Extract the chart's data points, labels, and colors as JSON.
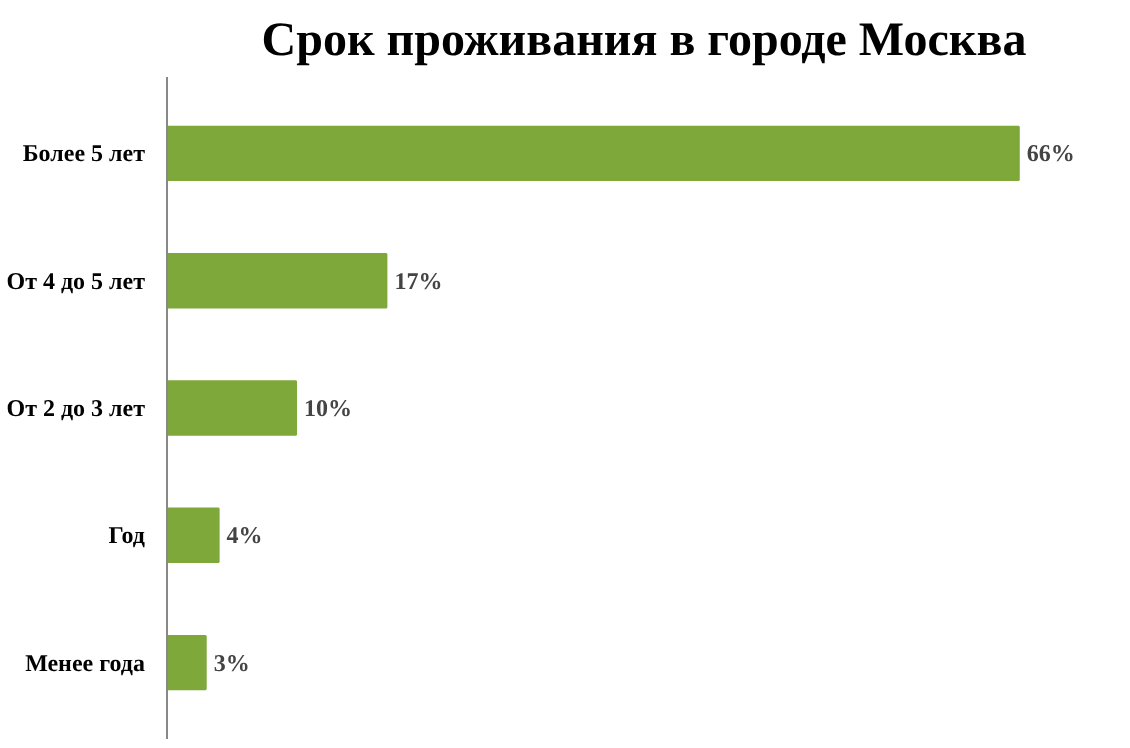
{
  "chart_data": {
    "type": "bar",
    "orientation": "horizontal",
    "title": "Срок проживания в городе Москва",
    "categories": [
      "Более 5 лет",
      "От 4 до 5 лет",
      "От 2 до 3 лет",
      "Год",
      "Менее года"
    ],
    "values": [
      66,
      17,
      10,
      4,
      3
    ],
    "value_labels": [
      "66%",
      "17%",
      "10%",
      "4%",
      "3%"
    ],
    "color": "#7fa83a",
    "grid": false,
    "tick_labels": "y"
  }
}
